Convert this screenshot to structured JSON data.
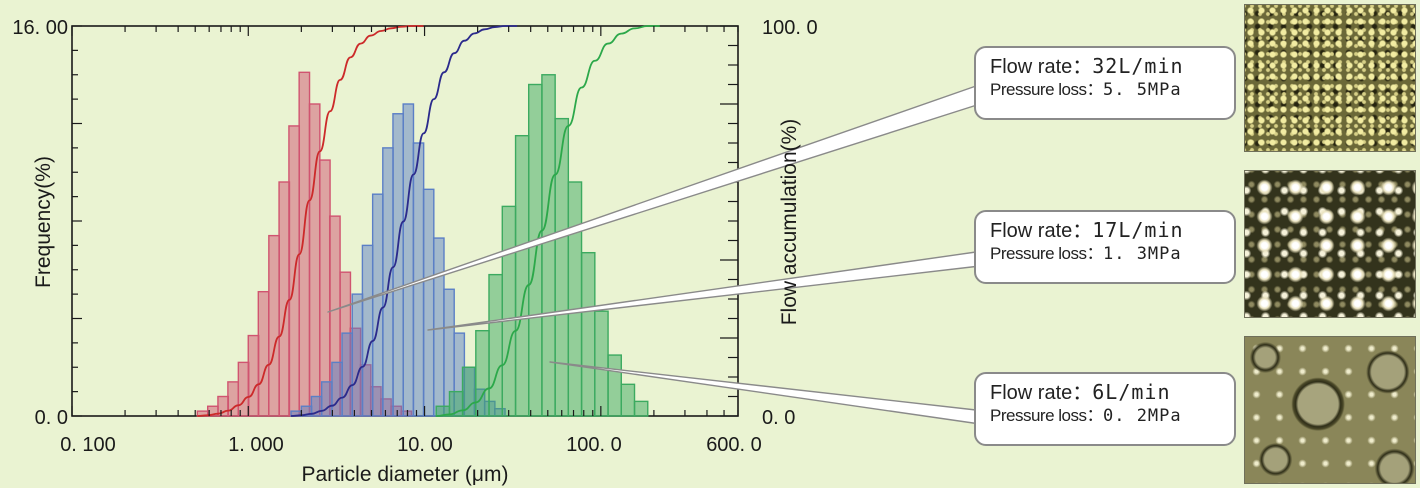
{
  "chart_data": {
    "type": "bar",
    "xlabel": "Particle diameter (μm)",
    "ylabel": "Frequency(%)",
    "y2label": "Flow accumulation(%)",
    "x_scale": "log",
    "xlim": [
      0.1,
      600
    ],
    "ylim": [
      0,
      16
    ],
    "y2lim": [
      0,
      100
    ],
    "x_tick_labels": [
      "0. 100",
      "1. 000",
      "10. 00",
      "100. 0",
      "600. 0"
    ],
    "y_tick_labels": [
      "16. 00",
      "0. 0"
    ],
    "y2_tick_labels": [
      "100. 0",
      "0. 0"
    ],
    "series": [
      {
        "color": "#d05470",
        "line_color": "#cc2a2a",
        "bins": [
          0.55,
          0.63,
          0.72,
          0.82,
          0.94,
          1.07,
          1.22,
          1.4,
          1.6,
          1.82,
          2.08,
          2.38,
          2.72,
          3.1,
          3.55,
          4.05,
          4.63,
          5.29,
          6.04,
          6.9,
          7.88
        ],
        "values": [
          0.2,
          0.4,
          0.8,
          1.4,
          2.2,
          3.3,
          5.1,
          7.4,
          9.6,
          11.9,
          14.1,
          12.8,
          10.5,
          8.2,
          5.9,
          3.6,
          2.1,
          1.2,
          0.7,
          0.4,
          0.2
        ]
      },
      {
        "color": "#5b7fc6",
        "line_color": "#2b2a8c",
        "bins": [
          1.87,
          2.14,
          2.44,
          2.79,
          3.19,
          3.64,
          4.16,
          4.75,
          5.43,
          6.2,
          7.08,
          8.09,
          9.24,
          10.55,
          12.05,
          13.77,
          15.73,
          17.96,
          20.51,
          23.43,
          26.76
        ],
        "values": [
          0.2,
          0.4,
          0.8,
          1.4,
          2.2,
          3.4,
          5.0,
          7.0,
          9.1,
          11.0,
          12.4,
          12.8,
          11.2,
          9.3,
          7.3,
          5.2,
          3.4,
          2.0,
          1.1,
          0.6,
          0.3
        ]
      },
      {
        "color": "#3caa60",
        "line_color": "#2ca84a",
        "bins": [
          12.7,
          15.1,
          17.9,
          21.3,
          25.3,
          30.1,
          35.8,
          42.5,
          50.5,
          60.0,
          71.3,
          84.8,
          100.8,
          119.8,
          142.4,
          169.3
        ],
        "values": [
          0.4,
          1.0,
          2.0,
          3.5,
          5.8,
          8.6,
          11.5,
          13.6,
          14.0,
          12.2,
          9.6,
          6.7,
          4.3,
          2.5,
          1.3,
          0.6
        ]
      }
    ]
  },
  "callouts": [
    {
      "rate_key": "Flow rate：",
      "rate_val": "32L/min",
      "loss_key": "Pressure loss：",
      "loss_val": "5. 5MPa"
    },
    {
      "rate_key": "Flow rate：",
      "rate_val": "17L/min",
      "loss_key": "Pressure loss：",
      "loss_val": "1. 3MPa"
    },
    {
      "rate_key": "Flow rate：",
      "rate_val": "6L/min",
      "loss_key": "Pressure loss：",
      "loss_val": "0. 2MPa"
    }
  ],
  "micrographs": [
    "fine-droplet-micrograph",
    "medium-droplet-micrograph",
    "coarse-droplet-micrograph"
  ]
}
